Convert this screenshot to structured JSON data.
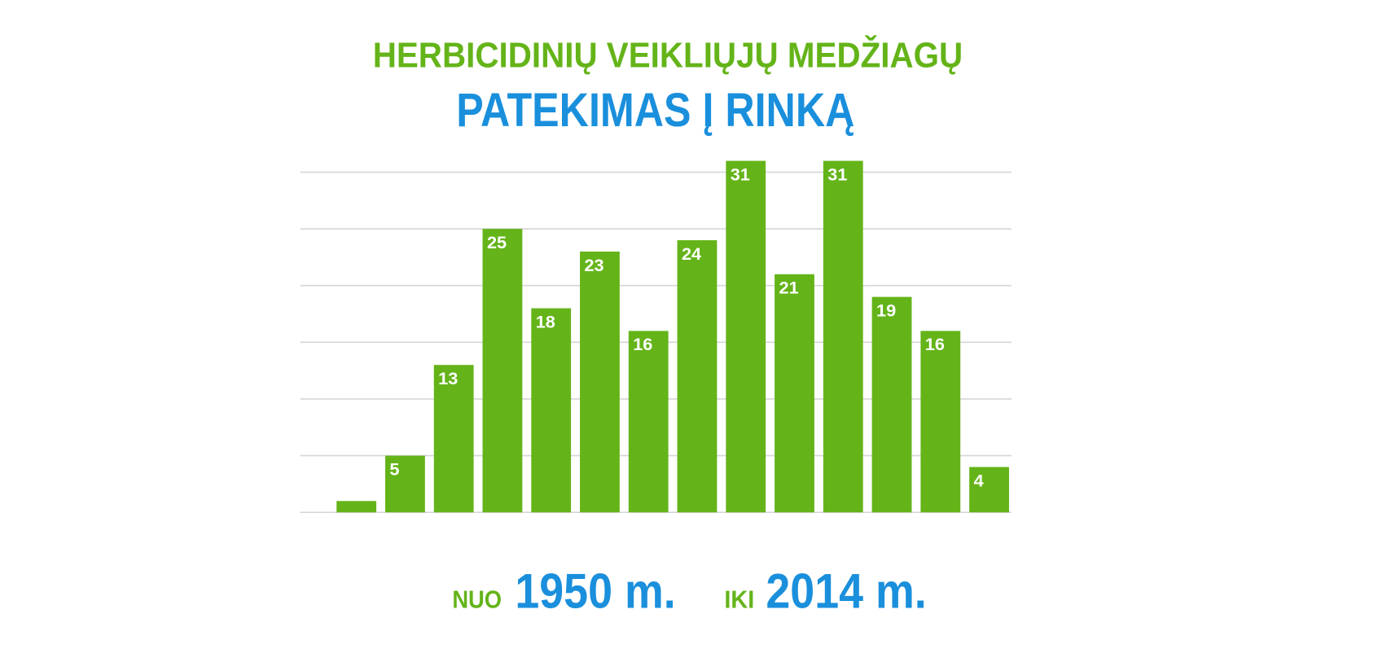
{
  "chart_data": {
    "type": "bar",
    "title": "HERBICIDINIŲ VEIKLIŲJŲ MEDŽIAGŲ",
    "subtitle": "PATEKIMAS Į RINKĄ",
    "footer": {
      "from_prefix": "NUO",
      "from": "1950 m.",
      "to_prefix": "IKI",
      "to": "2014 m."
    },
    "values": [
      1,
      5,
      13,
      25,
      18,
      23,
      16,
      24,
      31,
      21,
      31,
      19,
      16,
      4
    ],
    "value_labels": [
      null,
      "5",
      "13",
      "25",
      "18",
      "23",
      "16",
      "24",
      "31",
      "21",
      "31",
      "19",
      "16",
      "4"
    ],
    "color": "#64b419",
    "ylim": [
      0,
      31
    ],
    "yticks": [
      0,
      5,
      10,
      15,
      20,
      25,
      30
    ],
    "grid": true
  }
}
